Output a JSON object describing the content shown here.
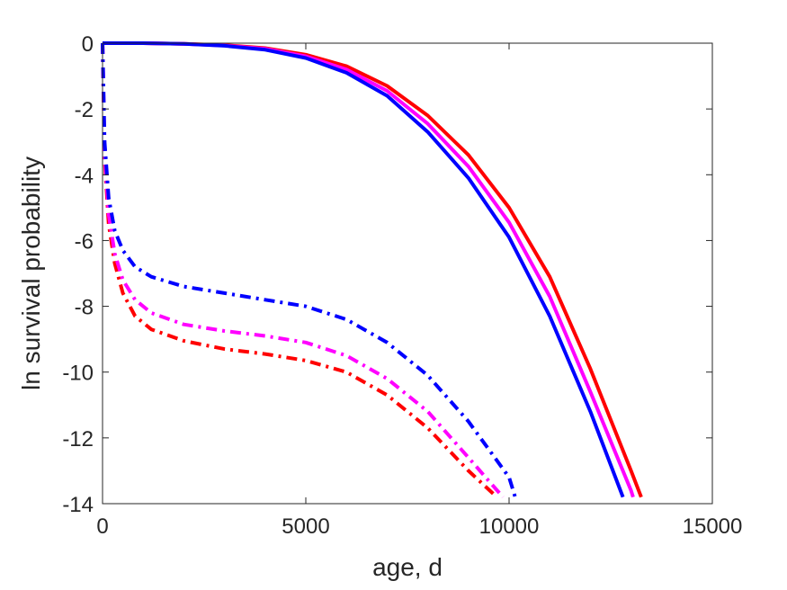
{
  "chart_data": {
    "type": "line",
    "title": "",
    "xlabel": "age, d",
    "ylabel": "ln survival probability",
    "xlim": [
      0,
      15000
    ],
    "ylim": [
      -14,
      0
    ],
    "xticks": [
      0,
      5000,
      10000,
      15000
    ],
    "yticks": [
      0,
      -2,
      -4,
      -6,
      -8,
      -10,
      -12,
      -14
    ],
    "grid": false,
    "legend": "none",
    "series": [
      {
        "color": "#ff0000",
        "style": "solid",
        "points": [
          [
            0,
            0
          ],
          [
            1000,
            0
          ],
          [
            2000,
            -0.02
          ],
          [
            3000,
            -0.06
          ],
          [
            4000,
            -0.15
          ],
          [
            5000,
            -0.35
          ],
          [
            6000,
            -0.7
          ],
          [
            7000,
            -1.3
          ],
          [
            8000,
            -2.2
          ],
          [
            9000,
            -3.4
          ],
          [
            10000,
            -5.0
          ],
          [
            11000,
            -7.1
          ],
          [
            12000,
            -9.9
          ],
          [
            13000,
            -13.0
          ],
          [
            13250,
            -13.8
          ]
        ]
      },
      {
        "color": "#ff00ff",
        "style": "solid",
        "points": [
          [
            0,
            0
          ],
          [
            1000,
            0
          ],
          [
            2000,
            -0.02
          ],
          [
            3000,
            -0.07
          ],
          [
            4000,
            -0.17
          ],
          [
            5000,
            -0.4
          ],
          [
            6000,
            -0.8
          ],
          [
            7000,
            -1.45
          ],
          [
            8000,
            -2.45
          ],
          [
            9000,
            -3.75
          ],
          [
            10000,
            -5.45
          ],
          [
            11000,
            -7.7
          ],
          [
            12000,
            -10.6
          ],
          [
            13000,
            -13.6
          ],
          [
            13050,
            -13.8
          ]
        ]
      },
      {
        "color": "#0000ff",
        "style": "solid",
        "points": [
          [
            0,
            0
          ],
          [
            1000,
            0
          ],
          [
            2000,
            -0.02
          ],
          [
            3000,
            -0.08
          ],
          [
            4000,
            -0.2
          ],
          [
            5000,
            -0.45
          ],
          [
            6000,
            -0.9
          ],
          [
            7000,
            -1.6
          ],
          [
            8000,
            -2.7
          ],
          [
            9000,
            -4.1
          ],
          [
            10000,
            -5.9
          ],
          [
            11000,
            -8.3
          ],
          [
            12000,
            -11.2
          ],
          [
            12800,
            -13.8
          ]
        ]
      },
      {
        "color": "#ff0000",
        "style": "dashdot",
        "points": [
          [
            0,
            0
          ],
          [
            50,
            -3.5
          ],
          [
            150,
            -5.5
          ],
          [
            300,
            -6.7
          ],
          [
            500,
            -7.6
          ],
          [
            800,
            -8.3
          ],
          [
            1200,
            -8.7
          ],
          [
            2000,
            -9.05
          ],
          [
            3000,
            -9.3
          ],
          [
            4000,
            -9.45
          ],
          [
            5000,
            -9.65
          ],
          [
            6000,
            -10.0
          ],
          [
            7000,
            -10.7
          ],
          [
            8000,
            -11.7
          ],
          [
            9000,
            -13.0
          ],
          [
            9700,
            -13.8
          ]
        ]
      },
      {
        "color": "#ff00ff",
        "style": "dashdot",
        "points": [
          [
            0,
            0
          ],
          [
            50,
            -3.3
          ],
          [
            150,
            -5.2
          ],
          [
            300,
            -6.4
          ],
          [
            500,
            -7.2
          ],
          [
            800,
            -7.8
          ],
          [
            1200,
            -8.2
          ],
          [
            2000,
            -8.55
          ],
          [
            3000,
            -8.75
          ],
          [
            4000,
            -8.9
          ],
          [
            5000,
            -9.1
          ],
          [
            6000,
            -9.5
          ],
          [
            7000,
            -10.2
          ],
          [
            8000,
            -11.2
          ],
          [
            9000,
            -12.6
          ],
          [
            9850,
            -13.8
          ]
        ]
      },
      {
        "color": "#0000ff",
        "style": "dashdot",
        "points": [
          [
            0,
            0
          ],
          [
            50,
            -3.0
          ],
          [
            150,
            -4.7
          ],
          [
            300,
            -5.7
          ],
          [
            500,
            -6.3
          ],
          [
            800,
            -6.8
          ],
          [
            1200,
            -7.1
          ],
          [
            2000,
            -7.4
          ],
          [
            3000,
            -7.6
          ],
          [
            4000,
            -7.8
          ],
          [
            5000,
            -8.0
          ],
          [
            6000,
            -8.4
          ],
          [
            7000,
            -9.1
          ],
          [
            8000,
            -10.1
          ],
          [
            9000,
            -11.5
          ],
          [
            10000,
            -13.2
          ],
          [
            10150,
            -13.8
          ]
        ]
      }
    ]
  }
}
